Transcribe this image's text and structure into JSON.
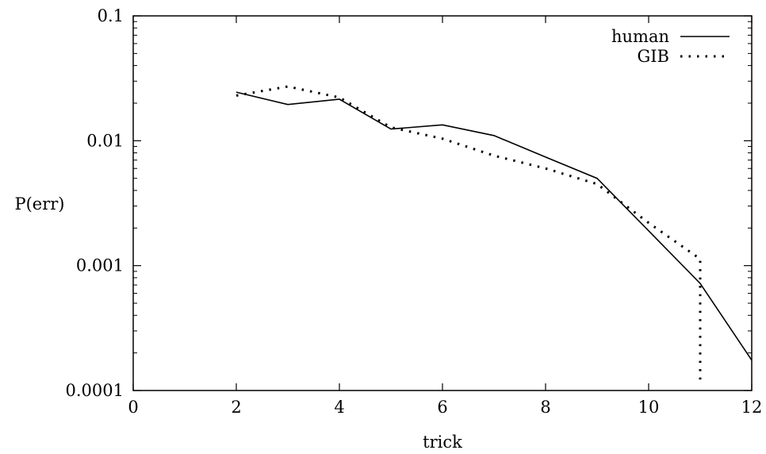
{
  "chart_data": {
    "type": "line",
    "title": "",
    "xlabel": "trick",
    "ylabel": "P(err)",
    "xlim": [
      0,
      12
    ],
    "ylim": [
      0.0001,
      0.1
    ],
    "yscale": "log",
    "grid": false,
    "legend": "top-right",
    "x_ticks": [
      0,
      2,
      4,
      6,
      8,
      10,
      12
    ],
    "x_tick_labels": [
      "0",
      "2",
      "4",
      "6",
      "8",
      "10",
      "12"
    ],
    "y_ticks": [
      0.0001,
      0.001,
      0.01,
      0.1
    ],
    "y_tick_labels": [
      "0.0001",
      "0.001",
      "0.01",
      "0.1"
    ],
    "series": [
      {
        "name": "human",
        "style": "solid",
        "color": "#000000",
        "x": [
          2,
          3,
          4,
          5,
          6,
          7,
          8,
          9,
          10,
          11,
          12
        ],
        "y": [
          0.0245,
          0.0195,
          0.0215,
          0.0124,
          0.0134,
          0.011,
          0.0074,
          0.005,
          0.0019,
          0.00072,
          0.000175
        ]
      },
      {
        "name": "GIB",
        "style": "dotted",
        "color": "#000000",
        "x": [
          2,
          3,
          4,
          5,
          6,
          7,
          8,
          9,
          10,
          11,
          11
        ],
        "y": [
          0.023,
          0.0272,
          0.0222,
          0.0128,
          0.0104,
          0.0076,
          0.006,
          0.0045,
          0.0022,
          0.00113,
          0.00012
        ]
      }
    ]
  }
}
